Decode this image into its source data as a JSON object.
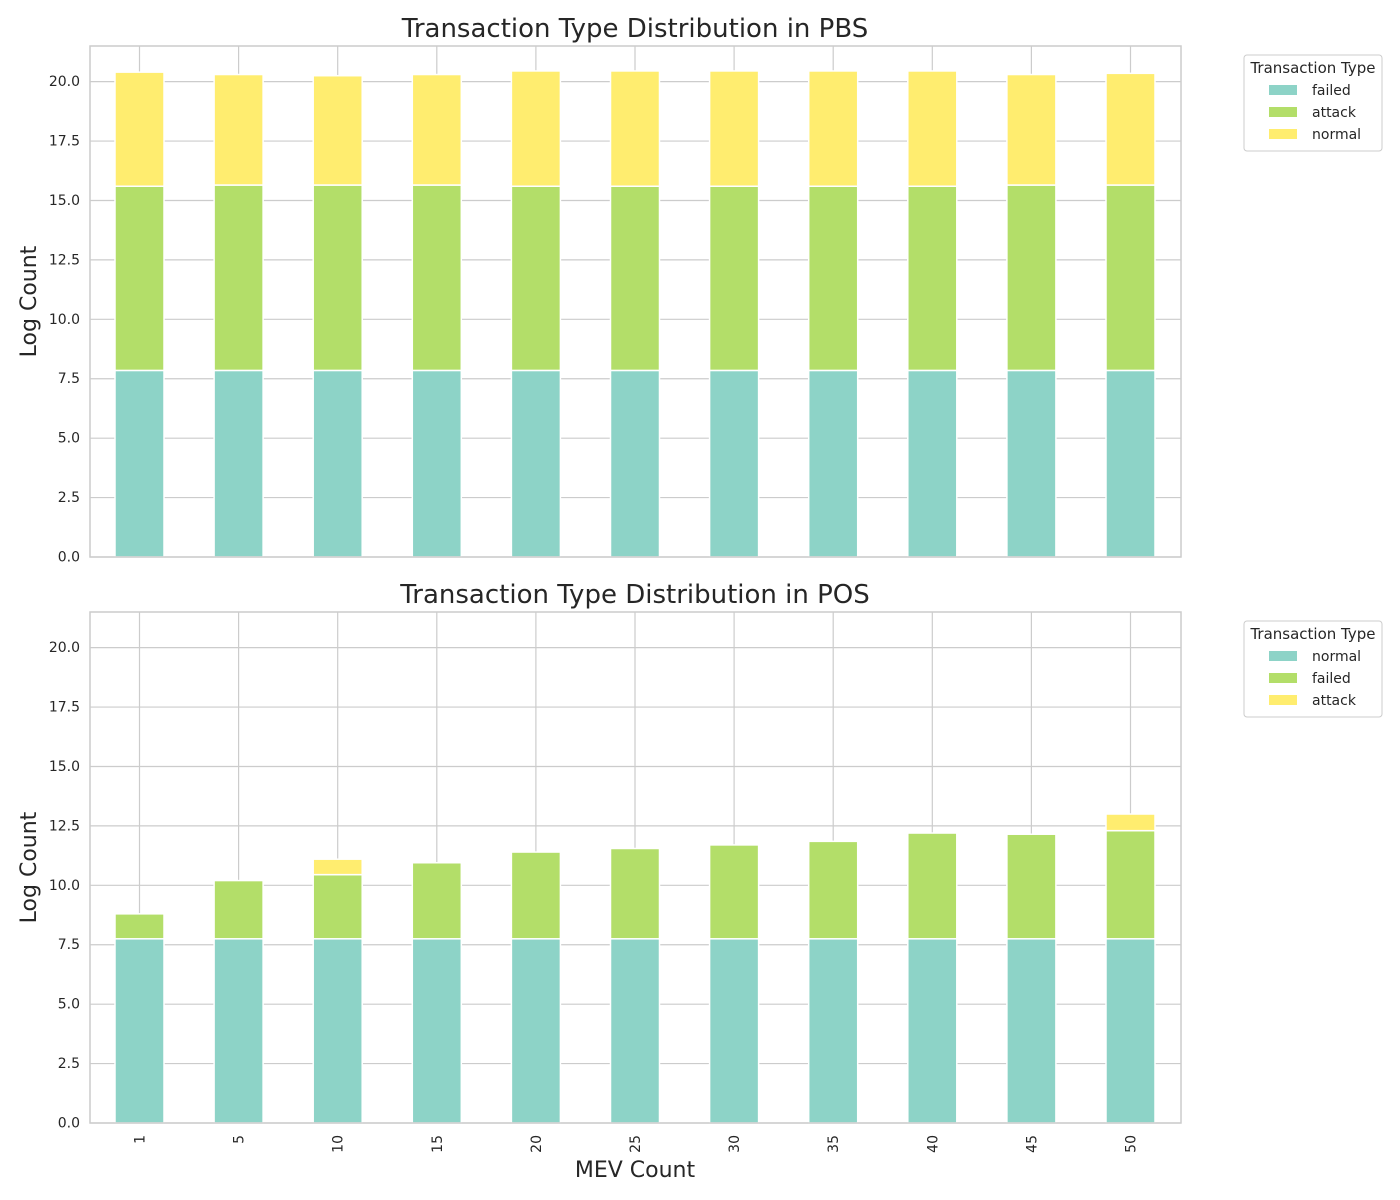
{
  "figure": {
    "ylabel": "Log Count",
    "xlabel": "MEV Count",
    "legend_title": "Transaction Type"
  },
  "chart_data": [
    {
      "type": "bar",
      "stacked": true,
      "title": "Transaction Type Distribution in PBS",
      "ylabel": "Log Count",
      "xlabel": "",
      "ylim": [
        0,
        21.5
      ],
      "yticks": [
        "0.0",
        "2.5",
        "5.0",
        "7.5",
        "10.0",
        "12.5",
        "15.0",
        "17.5",
        "20.0"
      ],
      "categories": [
        "1",
        "5",
        "10",
        "15",
        "20",
        "25",
        "30",
        "35",
        "40",
        "45",
        "50"
      ],
      "grid": true,
      "legend": {
        "title": "Transaction Type",
        "placement": "outside-top-right"
      },
      "series": [
        {
          "name": "failed",
          "color": "#8dd3c7",
          "values": [
            7.85,
            7.85,
            7.85,
            7.85,
            7.85,
            7.85,
            7.85,
            7.85,
            7.85,
            7.85,
            7.85
          ]
        },
        {
          "name": "attack",
          "color": "#b3de69",
          "values": [
            7.75,
            7.8,
            7.8,
            7.8,
            7.75,
            7.75,
            7.75,
            7.75,
            7.75,
            7.8,
            7.8
          ]
        },
        {
          "name": "normal",
          "color": "#ffed6f",
          "values": [
            4.8,
            4.65,
            4.6,
            4.65,
            4.85,
            4.85,
            4.85,
            4.85,
            4.85,
            4.65,
            4.7
          ]
        }
      ]
    },
    {
      "type": "bar",
      "stacked": true,
      "title": "Transaction Type Distribution in POS",
      "ylabel": "Log Count",
      "xlabel": "MEV Count",
      "ylim": [
        0,
        21.5
      ],
      "yticks": [
        "0.0",
        "2.5",
        "5.0",
        "7.5",
        "10.0",
        "12.5",
        "15.0",
        "17.5",
        "20.0"
      ],
      "categories": [
        "1",
        "5",
        "10",
        "15",
        "20",
        "25",
        "30",
        "35",
        "40",
        "45",
        "50"
      ],
      "grid": true,
      "legend": {
        "title": "Transaction Type",
        "placement": "outside-top-right"
      },
      "series": [
        {
          "name": "normal",
          "color": "#8dd3c7",
          "values": [
            7.75,
            7.75,
            7.75,
            7.75,
            7.75,
            7.75,
            7.75,
            7.75,
            7.75,
            7.75,
            7.75
          ]
        },
        {
          "name": "failed",
          "color": "#b3de69",
          "values": [
            1.05,
            2.45,
            2.7,
            3.2,
            3.65,
            3.8,
            3.95,
            4.1,
            4.45,
            4.4,
            4.55
          ]
        },
        {
          "name": "attack",
          "color": "#ffed6f",
          "values": [
            0,
            0,
            0.65,
            0,
            0,
            0,
            0,
            0,
            0,
            0,
            0.7
          ]
        }
      ]
    }
  ]
}
